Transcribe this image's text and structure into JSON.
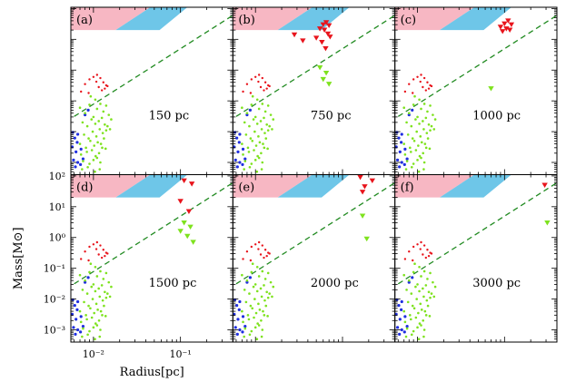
{
  "chart_data": {
    "type": "scatter",
    "xlabel": "Radius[pc]",
    "ylabel": "Mass[M⊙]",
    "x_scale": "log",
    "y_scale": "log",
    "xlim": [
      0.0055,
      0.4
    ],
    "ylim": [
      0.0004,
      110
    ],
    "x_ticks": [
      {
        "value": 0.01,
        "label": "10⁻²"
      },
      {
        "value": 0.1,
        "label": "10⁻¹"
      }
    ],
    "y_ticks": [
      {
        "value": 100,
        "label": "10²"
      },
      {
        "value": 10,
        "label": "10¹"
      },
      {
        "value": 1,
        "label": "10⁰"
      },
      {
        "value": 0.1,
        "label": "10⁻¹"
      },
      {
        "value": 0.01,
        "label": "10⁻²"
      },
      {
        "value": 0.001,
        "label": "10⁻³"
      }
    ],
    "layout": "2x3 grid, shared axes",
    "colors": {
      "pink_region": "#f7b7c3",
      "blue_region": "#6ec6e8",
      "dashed_line": "#228b22",
      "red": "#e8141c",
      "green": "#7ee21e",
      "blue": "#1f2ee0"
    },
    "dashed_line": {
      "points": [
        [
          0.004,
          0.015
        ],
        [
          0.4,
          60
        ]
      ]
    },
    "common_points": {
      "blue": [
        [
          0.0058,
          0.0095
        ],
        [
          0.0061,
          0.0062
        ],
        [
          0.0066,
          0.0082
        ],
        [
          0.0057,
          0.0032
        ],
        [
          0.0063,
          0.0022
        ],
        [
          0.0072,
          0.0027
        ],
        [
          0.0059,
          0.0012
        ],
        [
          0.0066,
          0.001
        ],
        [
          0.0076,
          0.0013
        ],
        [
          0.0062,
          0.00072
        ],
        [
          0.0071,
          0.00085
        ],
        [
          0.008,
          0.035
        ],
        [
          0.0087,
          0.05
        ],
        [
          0.0065,
          0.0045
        ]
      ],
      "green": [
        [
          0.007,
          0.06
        ],
        [
          0.008,
          0.04
        ],
        [
          0.009,
          0.075
        ],
        [
          0.01,
          0.03
        ],
        [
          0.011,
          0.055
        ],
        [
          0.012,
          0.08
        ],
        [
          0.013,
          0.045
        ],
        [
          0.014,
          0.07
        ],
        [
          0.0075,
          0.02
        ],
        [
          0.0085,
          0.015
        ],
        [
          0.0095,
          0.025
        ],
        [
          0.0105,
          0.018
        ],
        [
          0.0115,
          0.022
        ],
        [
          0.0125,
          0.028
        ],
        [
          0.0135,
          0.017
        ],
        [
          0.015,
          0.035
        ],
        [
          0.016,
          0.025
        ],
        [
          0.0078,
          0.008
        ],
        [
          0.0088,
          0.006
        ],
        [
          0.0098,
          0.01
        ],
        [
          0.0108,
          0.007
        ],
        [
          0.0118,
          0.012
        ],
        [
          0.0128,
          0.009
        ],
        [
          0.014,
          0.011
        ],
        [
          0.007,
          0.004
        ],
        [
          0.0082,
          0.003
        ],
        [
          0.0092,
          0.005
        ],
        [
          0.0102,
          0.0035
        ],
        [
          0.0112,
          0.0045
        ],
        [
          0.0122,
          0.004
        ],
        [
          0.0132,
          0.006
        ],
        [
          0.0072,
          0.0018
        ],
        [
          0.0084,
          0.0022
        ],
        [
          0.0096,
          0.0025
        ],
        [
          0.0106,
          0.0016
        ],
        [
          0.0116,
          0.002
        ],
        [
          0.0126,
          0.003
        ],
        [
          0.0138,
          0.0028
        ],
        [
          0.0076,
          0.0011
        ],
        [
          0.009,
          0.0009
        ],
        [
          0.01,
          0.0012
        ],
        [
          0.011,
          0.0014
        ],
        [
          0.012,
          0.001
        ],
        [
          0.0074,
          0.0006
        ],
        [
          0.0086,
          0.0007
        ],
        [
          0.0104,
          0.0005
        ],
        [
          0.0118,
          0.0006
        ],
        [
          0.0145,
          0.015
        ],
        [
          0.0155,
          0.012
        ],
        [
          0.0093,
          0.14
        ],
        [
          0.0105,
          0.11
        ]
      ],
      "red": [
        [
          0.0072,
          0.2
        ],
        [
          0.008,
          0.35
        ],
        [
          0.009,
          0.5
        ],
        [
          0.01,
          0.6
        ],
        [
          0.011,
          0.7
        ],
        [
          0.012,
          0.55
        ],
        [
          0.013,
          0.4
        ],
        [
          0.014,
          0.32
        ],
        [
          0.0115,
          0.28
        ],
        [
          0.0125,
          0.22
        ],
        [
          0.0135,
          0.25
        ],
        [
          0.0145,
          0.3
        ],
        [
          0.0088,
          0.18
        ],
        [
          0.0108,
          0.42
        ]
      ]
    },
    "panels": [
      {
        "letter": "(a)",
        "distance": "150 pc",
        "extra_red_triangles": [],
        "extra_green_triangles": []
      },
      {
        "letter": "(b)",
        "distance": "750 pc",
        "extra_red_triangles": [
          [
            0.028,
            14
          ],
          [
            0.035,
            9
          ],
          [
            0.05,
            11
          ],
          [
            0.055,
            22
          ],
          [
            0.06,
            30
          ],
          [
            0.065,
            35
          ],
          [
            0.07,
            28
          ],
          [
            0.062,
            20
          ],
          [
            0.068,
            15
          ],
          [
            0.072,
            12
          ],
          [
            0.058,
            8
          ],
          [
            0.064,
            5
          ]
        ],
        "extra_green_triangles": [
          [
            0.055,
            1.2
          ],
          [
            0.065,
            0.8
          ],
          [
            0.06,
            0.5
          ],
          [
            0.07,
            0.35
          ]
        ]
      },
      {
        "letter": "(c)",
        "distance": "1000 pc",
        "extra_red_triangles": [
          [
            0.09,
            25
          ],
          [
            0.1,
            32
          ],
          [
            0.11,
            40
          ],
          [
            0.12,
            30
          ],
          [
            0.105,
            22
          ],
          [
            0.095,
            18
          ],
          [
            0.115,
            20
          ]
        ],
        "extra_green_triangles": [
          [
            0.07,
            0.25
          ]
        ]
      },
      {
        "letter": "(d)",
        "distance": "1500 pc",
        "extra_red_triangles": [
          [
            0.11,
            70
          ],
          [
            0.135,
            55
          ],
          [
            0.1,
            15
          ],
          [
            0.125,
            7
          ]
        ],
        "extra_green_triangles": [
          [
            0.11,
            3
          ],
          [
            0.13,
            2.2
          ],
          [
            0.1,
            1.6
          ],
          [
            0.12,
            1.1
          ],
          [
            0.14,
            0.7
          ]
        ]
      },
      {
        "letter": "(e)",
        "distance": "2000 pc",
        "extra_red_triangles": [
          [
            0.16,
            90
          ],
          [
            0.22,
            70
          ],
          [
            0.18,
            45
          ],
          [
            0.17,
            30
          ]
        ],
        "extra_green_triangles": [
          [
            0.17,
            5
          ],
          [
            0.19,
            0.9
          ]
        ]
      },
      {
        "letter": "(f)",
        "distance": "3000 pc",
        "extra_red_triangles": [
          [
            0.29,
            50
          ]
        ],
        "extra_green_triangles": [
          [
            0.31,
            3.0
          ]
        ]
      }
    ]
  }
}
